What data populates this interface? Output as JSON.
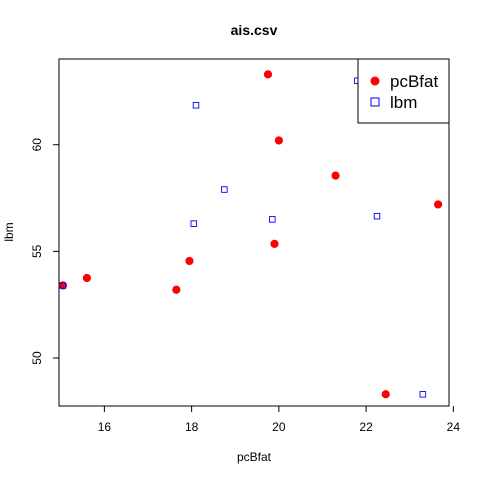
{
  "chart_data": {
    "type": "scatter",
    "title": "ais.csv",
    "xlabel": "pcBfat",
    "ylabel": "lbm",
    "xlim": [
      14.96,
      23.9
    ],
    "ylim": [
      47.75,
      64.02
    ],
    "xticks": [
      16,
      18,
      20,
      22,
      24
    ],
    "yticks": [
      50,
      55,
      60
    ],
    "legend_position": "top-right",
    "series": [
      {
        "name": "pcBfat",
        "marker": "filled-circle",
        "color": "#ff0000",
        "points": [
          {
            "x": 15.05,
            "y": 53.4
          },
          {
            "x": 15.6,
            "y": 53.75
          },
          {
            "x": 17.65,
            "y": 53.2
          },
          {
            "x": 17.95,
            "y": 54.55
          },
          {
            "x": 19.75,
            "y": 63.3
          },
          {
            "x": 19.9,
            "y": 55.35
          },
          {
            "x": 20.0,
            "y": 60.2
          },
          {
            "x": 21.3,
            "y": 58.55
          },
          {
            "x": 22.45,
            "y": 48.3
          },
          {
            "x": 23.65,
            "y": 57.2
          }
        ]
      },
      {
        "name": "lbm",
        "marker": "open-square",
        "color": "#0000ff",
        "points": [
          {
            "x": 15.05,
            "y": 53.4
          },
          {
            "x": 18.05,
            "y": 56.3
          },
          {
            "x": 18.1,
            "y": 61.85
          },
          {
            "x": 18.75,
            "y": 57.9
          },
          {
            "x": 19.85,
            "y": 56.5
          },
          {
            "x": 21.8,
            "y": 63.0
          },
          {
            "x": 22.25,
            "y": 56.65
          },
          {
            "x": 23.3,
            "y": 48.3
          }
        ]
      }
    ]
  }
}
